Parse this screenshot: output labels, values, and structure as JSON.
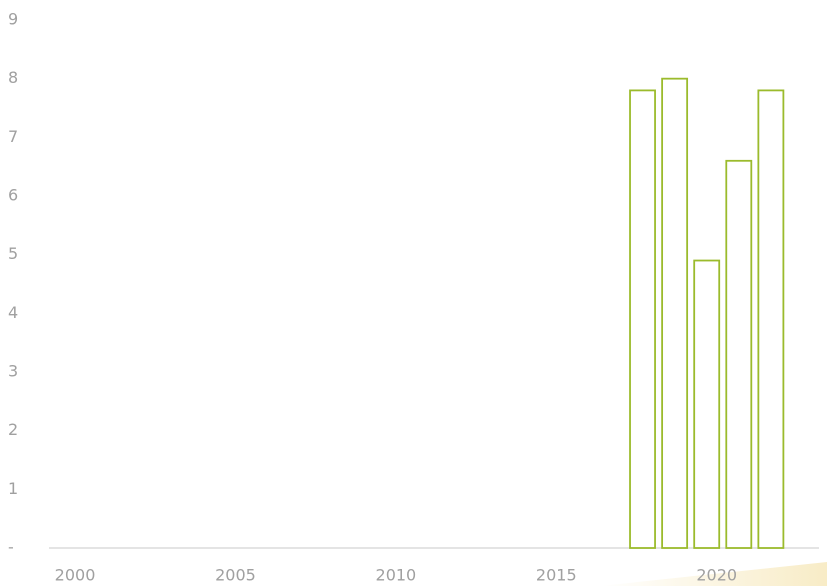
{
  "chart_data": {
    "type": "bar",
    "x": [
      2018,
      2019,
      2020,
      2021,
      2022
    ],
    "values": [
      7.8,
      8.0,
      4.9,
      6.6,
      7.8
    ],
    "color": "#9bbb2c",
    "xlim": [
      1999.5,
      2023.5
    ],
    "xticks": [
      2000,
      2005,
      2010,
      2015,
      2020
    ],
    "ylim": [
      0,
      9
    ],
    "yticks": [
      {
        "value": 0,
        "label": "-"
      },
      1,
      2,
      3,
      4,
      5,
      6,
      7,
      8,
      9
    ],
    "grid": false
  }
}
